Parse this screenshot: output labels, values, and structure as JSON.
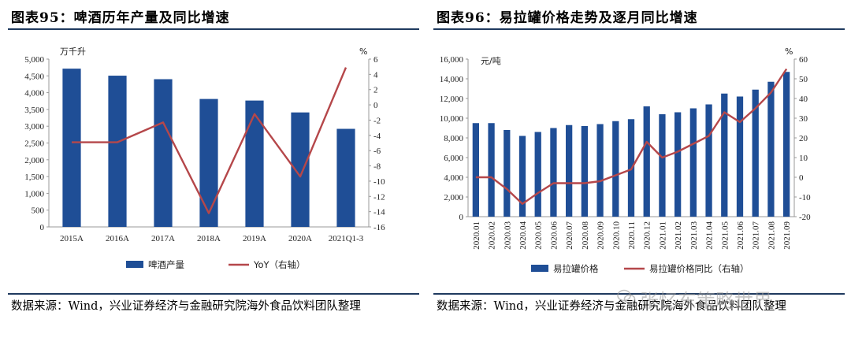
{
  "charts": {
    "left": {
      "figure_title": "图表95：啤酒历年产量及同比增速",
      "source_text": "数据来源：Wind，兴业证券经济与金融研究院海外食品饮料团队整理"
    },
    "right": {
      "figure_title": "图表96：易拉罐价格走势及逐月同比增速",
      "source_text": "数据来源：Wind，兴业证券经济与金融研究院海外食品饮料团队整理"
    }
  },
  "watermark": "张忆东策略世界",
  "chart_data": [
    {
      "type": "bar",
      "title": "图表95：啤酒历年产量及同比增速",
      "categories": [
        "2015A",
        "2016A",
        "2017A",
        "2018A",
        "2019A",
        "2020A",
        "2021Q1-3"
      ],
      "series": [
        {
          "name": "啤酒产量",
          "type": "bar",
          "axis": "left",
          "values": [
            4715,
            4506,
            4401,
            3812,
            3765,
            3411,
            2922
          ]
        },
        {
          "name": "YoY（右轴）",
          "type": "line",
          "axis": "right",
          "values": [
            -4.9,
            -4.9,
            -2.3,
            -14.2,
            -1.2,
            -9.4,
            4.9
          ]
        }
      ],
      "yleft": {
        "label": "万千升",
        "ylim": [
          0,
          5000
        ],
        "ticks": [
          "0",
          "500",
          "1,000",
          "1,500",
          "2,000",
          "2,500",
          "3,000",
          "3,500",
          "4,000",
          "4,500",
          "5,000"
        ]
      },
      "yright": {
        "label": "%",
        "ylim": [
          -16,
          6
        ],
        "ticks": [
          "-16",
          "-14",
          "-12",
          "-10",
          "-8",
          "-6",
          "-4",
          "-2",
          "0",
          "2",
          "4",
          "6"
        ]
      },
      "colors": {
        "bar": "#1f4e96",
        "line": "#b5474a"
      }
    },
    {
      "type": "bar",
      "title": "图表96：易拉罐价格走势及逐月同比增速",
      "categories": [
        "2020.01",
        "2020.02",
        "2020.03",
        "2020.04",
        "2020.05",
        "2020.06",
        "2020.07",
        "2020.08",
        "2020.09",
        "2020.10",
        "2020.11",
        "2020.12",
        "2021.01",
        "2021.02",
        "2021.03",
        "2021.04",
        "2021.05",
        "2021.06",
        "2021.07",
        "2021.08",
        "2021.09"
      ],
      "series": [
        {
          "name": "易拉罐价格",
          "type": "bar",
          "axis": "left",
          "values": [
            9500,
            9500,
            8800,
            8200,
            8600,
            9000,
            9300,
            9200,
            9400,
            9700,
            9900,
            11200,
            10400,
            10600,
            11000,
            11400,
            12500,
            12200,
            12900,
            13700,
            14700
          ]
        },
        {
          "name": "易拉罐价格同比（右轴）",
          "type": "line",
          "axis": "right",
          "values": [
            0,
            0,
            -6,
            -13.5,
            -8,
            -3,
            -3,
            -3,
            -2,
            1,
            4,
            18,
            10,
            13,
            17,
            21,
            33,
            28,
            35,
            43,
            55
          ]
        }
      ],
      "yleft": {
        "label": "元/吨",
        "ylim": [
          0,
          16000
        ],
        "ticks": [
          "0",
          "2,000",
          "4,000",
          "6,000",
          "8,000",
          "10,000",
          "12,000",
          "14,000",
          "16,000"
        ]
      },
      "yright": {
        "label": "%",
        "ylim": [
          -20,
          60
        ],
        "ticks": [
          "-20",
          "-10",
          "0",
          "10",
          "20",
          "30",
          "40",
          "50",
          "60"
        ]
      },
      "colors": {
        "bar": "#1f4e96",
        "line": "#b5474a"
      }
    }
  ]
}
